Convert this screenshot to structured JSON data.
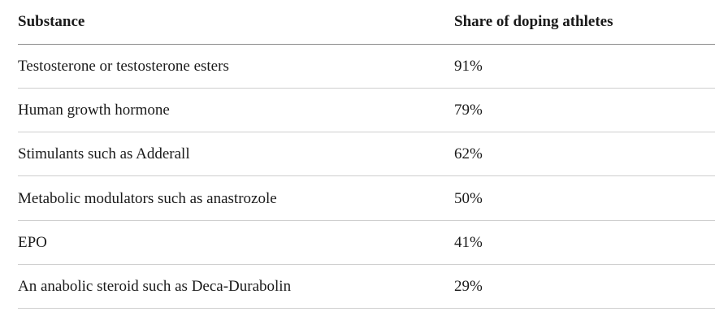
{
  "table": {
    "header": [
      "Substance",
      "Share of doping athletes"
    ],
    "rows": [
      [
        "Testosterone or testosterone esters",
        "91%"
      ],
      [
        "Human growth hormone",
        "79%"
      ],
      [
        "Stimulants such as Adderall",
        "62%"
      ],
      [
        "Metabolic modulators such as anastrozole",
        "50%"
      ],
      [
        "EPO",
        "41%"
      ],
      [
        "An anabolic steroid such as Deca-Durabolin",
        "29%"
      ]
    ]
  }
}
